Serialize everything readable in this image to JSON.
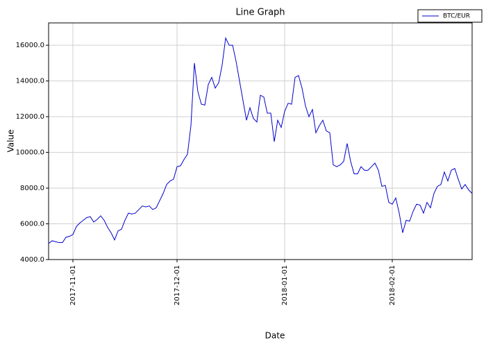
{
  "chart_data": {
    "type": "line",
    "title": "Line Graph",
    "xlabel": "Date",
    "ylabel": "Value",
    "x": [
      "2017-10-25",
      "2017-10-26",
      "2017-10-27",
      "2017-10-28",
      "2017-10-29",
      "2017-10-30",
      "2017-10-31",
      "2017-11-01",
      "2017-11-02",
      "2017-11-03",
      "2017-11-04",
      "2017-11-05",
      "2017-11-06",
      "2017-11-07",
      "2017-11-08",
      "2017-11-09",
      "2017-11-10",
      "2017-11-11",
      "2017-11-12",
      "2017-11-13",
      "2017-11-14",
      "2017-11-15",
      "2017-11-16",
      "2017-11-17",
      "2017-11-18",
      "2017-11-19",
      "2017-11-20",
      "2017-11-21",
      "2017-11-22",
      "2017-11-23",
      "2017-11-24",
      "2017-11-25",
      "2017-11-26",
      "2017-11-27",
      "2017-11-28",
      "2017-11-29",
      "2017-11-30",
      "2017-12-01",
      "2017-12-02",
      "2017-12-03",
      "2017-12-04",
      "2017-12-05",
      "2017-12-06",
      "2017-12-07",
      "2017-12-08",
      "2017-12-09",
      "2017-12-10",
      "2017-12-11",
      "2017-12-12",
      "2017-12-13",
      "2017-12-14",
      "2017-12-15",
      "2017-12-16",
      "2017-12-17",
      "2017-12-18",
      "2017-12-19",
      "2017-12-20",
      "2017-12-21",
      "2017-12-22",
      "2017-12-23",
      "2017-12-24",
      "2017-12-25",
      "2017-12-26",
      "2017-12-27",
      "2017-12-28",
      "2017-12-29",
      "2017-12-30",
      "2017-12-31",
      "2018-01-01",
      "2018-01-02",
      "2018-01-03",
      "2018-01-04",
      "2018-01-05",
      "2018-01-06",
      "2018-01-07",
      "2018-01-08",
      "2018-01-09",
      "2018-01-10",
      "2018-01-11",
      "2018-01-12",
      "2018-01-13",
      "2018-01-14",
      "2018-01-15",
      "2018-01-16",
      "2018-01-17",
      "2018-01-18",
      "2018-01-19",
      "2018-01-20",
      "2018-01-21",
      "2018-01-22",
      "2018-01-23",
      "2018-01-24",
      "2018-01-25",
      "2018-01-26",
      "2018-01-27",
      "2018-01-28",
      "2018-01-29",
      "2018-01-30",
      "2018-01-31",
      "2018-02-01",
      "2018-02-02",
      "2018-02-03",
      "2018-02-04",
      "2018-02-05",
      "2018-02-06",
      "2018-02-07",
      "2018-02-08",
      "2018-02-09",
      "2018-02-10",
      "2018-02-11",
      "2018-02-12",
      "2018-02-13",
      "2018-02-14",
      "2018-02-15",
      "2018-02-16",
      "2018-02-17",
      "2018-02-18",
      "2018-02-19",
      "2018-02-20",
      "2018-02-21",
      "2018-02-22",
      "2018-02-23",
      "2018-02-24"
    ],
    "series": [
      {
        "name": "BTC/EUR",
        "color": "#0000cc",
        "values": [
          4900,
          5050,
          5000,
          4950,
          4950,
          5250,
          5300,
          5400,
          5850,
          6050,
          6200,
          6350,
          6400,
          6100,
          6250,
          6450,
          6200,
          5800,
          5500,
          5100,
          5600,
          5700,
          6200,
          6600,
          6550,
          6600,
          6800,
          7000,
          6950,
          7000,
          6800,
          6900,
          7300,
          7700,
          8200,
          8400,
          8500,
          9200,
          9250,
          9600,
          9900,
          11500,
          15000,
          13400,
          12700,
          12650,
          13800,
          14200,
          13600,
          13900,
          14900,
          16400,
          16000,
          16000,
          15100,
          14000,
          12900,
          11800,
          12500,
          11900,
          11700,
          13200,
          13100,
          12200,
          12200,
          10600,
          11800,
          11400,
          12300,
          12750,
          12700,
          14200,
          14300,
          13600,
          12600,
          12000,
          12400,
          11100,
          11500,
          11800,
          11200,
          11100,
          9300,
          9200,
          9300,
          9500,
          10500,
          9500,
          8800,
          8800,
          9200,
          9000,
          9000,
          9200,
          9400,
          9000,
          8100,
          8150,
          7200,
          7100,
          7450,
          6600,
          5500,
          6200,
          6150,
          6700,
          7100,
          7050,
          6600,
          7200,
          6900,
          7700,
          8100,
          8200,
          8900,
          8400,
          9000,
          9100,
          8500,
          7950,
          8200,
          7900,
          7700
        ]
      }
    ],
    "xlim": [
      "2017-10-25",
      "2018-02-24"
    ],
    "xticks": [
      "2017-11-01",
      "2017-12-01",
      "2018-01-01",
      "2018-02-01"
    ],
    "ylim": [
      4000,
      17250
    ],
    "yticks": [
      {
        "value": 4000,
        "label": "4000.0"
      },
      {
        "value": 6000,
        "label": "6000.0"
      },
      {
        "value": 8000,
        "label": "8000.0"
      },
      {
        "value": 10000,
        "label": "10000.0"
      },
      {
        "value": 12000,
        "label": "12000.0"
      },
      {
        "value": 14000,
        "label": "14000.0"
      },
      {
        "value": 16000,
        "label": "16000.0"
      }
    ],
    "grid": true,
    "legend": "upper right"
  }
}
